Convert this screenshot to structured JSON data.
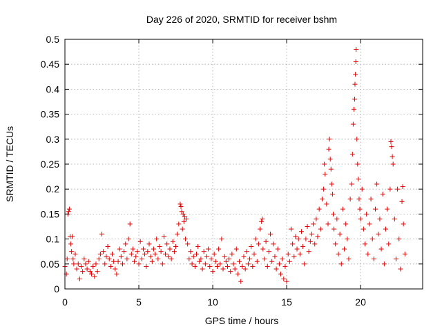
{
  "chart_data": {
    "type": "scatter",
    "title": "Day 226 of 2020, SRMTID for receiver bshm",
    "xlabel": "GPS time / hours",
    "ylabel": "SRMTID / TECUs",
    "xlim": [
      0,
      24.2
    ],
    "ylim": [
      0,
      0.5
    ],
    "xticks": [
      0,
      5,
      10,
      15,
      20
    ],
    "xtick_labels": [
      "0",
      "5",
      "10",
      "15",
      "20"
    ],
    "yticks": [
      0,
      0.05,
      0.1,
      0.15,
      0.2,
      0.25,
      0.3,
      0.35,
      0.4,
      0.45,
      0.5
    ],
    "ytick_labels": [
      "0",
      "0.05",
      "0.1",
      "0.15",
      "0.2",
      "0.25",
      "0.3",
      "0.35",
      "0.4",
      "0.45",
      "0.5"
    ],
    "grid": true,
    "marker": "+",
    "color": "#e00000",
    "series": [
      {
        "name": "SRMTID",
        "points": [
          [
            0.0,
            0.045
          ],
          [
            0.1,
            0.03
          ],
          [
            0.15,
            0.06
          ],
          [
            0.2,
            0.15
          ],
          [
            0.25,
            0.155
          ],
          [
            0.3,
            0.16
          ],
          [
            0.35,
            0.105
          ],
          [
            0.4,
            0.09
          ],
          [
            0.45,
            0.075
          ],
          [
            0.5,
            0.105
          ],
          [
            0.55,
            0.06
          ],
          [
            0.6,
            0.05
          ],
          [
            0.7,
            0.07
          ],
          [
            0.8,
            0.04
          ],
          [
            0.9,
            0.05
          ],
          [
            1.0,
            0.02
          ],
          [
            1.1,
            0.045
          ],
          [
            1.2,
            0.035
          ],
          [
            1.3,
            0.06
          ],
          [
            1.4,
            0.05
          ],
          [
            1.5,
            0.04
          ],
          [
            1.6,
            0.055
          ],
          [
            1.7,
            0.035
          ],
          [
            1.8,
            0.03
          ],
          [
            1.9,
            0.045
          ],
          [
            2.0,
            0.025
          ],
          [
            2.1,
            0.05
          ],
          [
            2.2,
            0.035
          ],
          [
            2.3,
            0.06
          ],
          [
            2.4,
            0.07
          ],
          [
            2.5,
            0.11
          ],
          [
            2.6,
            0.075
          ],
          [
            2.7,
            0.05
          ],
          [
            2.8,
            0.065
          ],
          [
            2.9,
            0.085
          ],
          [
            3.0,
            0.06
          ],
          [
            3.1,
            0.045
          ],
          [
            3.2,
            0.07
          ],
          [
            3.3,
            0.055
          ],
          [
            3.4,
            0.04
          ],
          [
            3.5,
            0.03
          ],
          [
            3.6,
            0.055
          ],
          [
            3.7,
            0.08
          ],
          [
            3.8,
            0.065
          ],
          [
            3.9,
            0.05
          ],
          [
            4.0,
            0.075
          ],
          [
            4.1,
            0.09
          ],
          [
            4.2,
            0.06
          ],
          [
            4.3,
            0.1
          ],
          [
            4.4,
            0.13
          ],
          [
            4.5,
            0.07
          ],
          [
            4.6,
            0.08
          ],
          [
            4.7,
            0.055
          ],
          [
            4.8,
            0.065
          ],
          [
            4.9,
            0.075
          ],
          [
            5.0,
            0.05
          ],
          [
            5.1,
            0.095
          ],
          [
            5.2,
            0.06
          ],
          [
            5.3,
            0.08
          ],
          [
            5.4,
            0.07
          ],
          [
            5.5,
            0.045
          ],
          [
            5.6,
            0.075
          ],
          [
            5.7,
            0.09
          ],
          [
            5.8,
            0.065
          ],
          [
            5.9,
            0.055
          ],
          [
            6.0,
            0.08
          ],
          [
            6.1,
            0.07
          ],
          [
            6.2,
            0.1
          ],
          [
            6.3,
            0.06
          ],
          [
            6.4,
            0.085
          ],
          [
            6.5,
            0.075
          ],
          [
            6.6,
            0.05
          ],
          [
            6.7,
            0.105
          ],
          [
            6.8,
            0.07
          ],
          [
            6.9,
            0.09
          ],
          [
            7.0,
            0.065
          ],
          [
            7.1,
            0.08
          ],
          [
            7.2,
            0.06
          ],
          [
            7.3,
            0.095
          ],
          [
            7.4,
            0.075
          ],
          [
            7.5,
            0.085
          ],
          [
            7.6,
            0.11
          ],
          [
            7.7,
            0.13
          ],
          [
            7.8,
            0.17
          ],
          [
            7.85,
            0.165
          ],
          [
            7.9,
            0.155
          ],
          [
            7.95,
            0.12
          ],
          [
            8.0,
            0.15
          ],
          [
            8.05,
            0.135
          ],
          [
            8.1,
            0.145
          ],
          [
            8.15,
            0.1
          ],
          [
            8.2,
            0.14
          ],
          [
            8.3,
            0.09
          ],
          [
            8.4,
            0.06
          ],
          [
            8.5,
            0.075
          ],
          [
            8.6,
            0.05
          ],
          [
            8.7,
            0.065
          ],
          [
            8.8,
            0.045
          ],
          [
            8.9,
            0.07
          ],
          [
            9.0,
            0.085
          ],
          [
            9.1,
            0.055
          ],
          [
            9.2,
            0.06
          ],
          [
            9.3,
            0.04
          ],
          [
            9.4,
            0.075
          ],
          [
            9.5,
            0.05
          ],
          [
            9.6,
            0.065
          ],
          [
            9.7,
            0.08
          ],
          [
            9.8,
            0.045
          ],
          [
            9.9,
            0.06
          ],
          [
            10.0,
            0.035
          ],
          [
            10.1,
            0.07
          ],
          [
            10.2,
            0.055
          ],
          [
            10.3,
            0.045
          ],
          [
            10.4,
            0.08
          ],
          [
            10.5,
            0.05
          ],
          [
            10.6,
            0.1
          ],
          [
            10.7,
            0.04
          ],
          [
            10.8,
            0.065
          ],
          [
            10.9,
            0.055
          ],
          [
            11.0,
            0.045
          ],
          [
            11.1,
            0.06
          ],
          [
            11.2,
            0.035
          ],
          [
            11.3,
            0.07
          ],
          [
            11.4,
            0.05
          ],
          [
            11.5,
            0.04
          ],
          [
            11.6,
            0.08
          ],
          [
            11.7,
            0.03
          ],
          [
            11.8,
            0.055
          ],
          [
            11.9,
            0.015
          ],
          [
            12.0,
            0.045
          ],
          [
            12.1,
            0.065
          ],
          [
            12.2,
            0.04
          ],
          [
            12.3,
            0.075
          ],
          [
            12.4,
            0.05
          ],
          [
            12.5,
            0.06
          ],
          [
            12.6,
            0.085
          ],
          [
            12.7,
            0.045
          ],
          [
            12.8,
            0.07
          ],
          [
            12.9,
            0.1
          ],
          [
            13.0,
            0.055
          ],
          [
            13.1,
            0.09
          ],
          [
            13.2,
            0.12
          ],
          [
            13.3,
            0.135
          ],
          [
            13.35,
            0.14
          ],
          [
            13.4,
            0.08
          ],
          [
            13.5,
            0.06
          ],
          [
            13.6,
            0.095
          ],
          [
            13.7,
            0.045
          ],
          [
            13.8,
            0.075
          ],
          [
            13.9,
            0.11
          ],
          [
            14.0,
            0.055
          ],
          [
            14.1,
            0.09
          ],
          [
            14.2,
            0.065
          ],
          [
            14.3,
            0.04
          ],
          [
            14.4,
            0.08
          ],
          [
            14.5,
            0.05
          ],
          [
            14.6,
            0.03
          ],
          [
            14.7,
            0.06
          ],
          [
            14.8,
            0.02
          ],
          [
            14.9,
            0.045
          ],
          [
            15.0,
            0.015
          ],
          [
            15.1,
            0.07
          ],
          [
            15.2,
            0.055
          ],
          [
            15.3,
            0.12
          ],
          [
            15.4,
            0.09
          ],
          [
            15.5,
            0.065
          ],
          [
            15.6,
            0.105
          ],
          [
            15.7,
            0.08
          ],
          [
            15.8,
            0.1
          ],
          [
            15.9,
            0.07
          ],
          [
            16.0,
            0.115
          ],
          [
            16.1,
            0.085
          ],
          [
            16.2,
            0.05
          ],
          [
            16.3,
            0.1
          ],
          [
            16.4,
            0.125
          ],
          [
            16.5,
            0.075
          ],
          [
            16.6,
            0.095
          ],
          [
            16.7,
            0.11
          ],
          [
            16.8,
            0.13
          ],
          [
            16.9,
            0.09
          ],
          [
            17.0,
            0.14
          ],
          [
            17.1,
            0.105
          ],
          [
            17.2,
            0.16
          ],
          [
            17.3,
            0.12
          ],
          [
            17.4,
            0.18
          ],
          [
            17.5,
            0.2
          ],
          [
            17.55,
            0.25
          ],
          [
            17.6,
            0.23
          ],
          [
            17.7,
            0.17
          ],
          [
            17.8,
            0.13
          ],
          [
            17.85,
            0.28
          ],
          [
            17.9,
            0.3
          ],
          [
            17.95,
            0.26
          ],
          [
            18.0,
            0.24
          ],
          [
            18.05,
            0.21
          ],
          [
            18.1,
            0.19
          ],
          [
            18.15,
            0.15
          ],
          [
            18.2,
            0.12
          ],
          [
            18.3,
            0.09
          ],
          [
            18.4,
            0.14
          ],
          [
            18.5,
            0.07
          ],
          [
            18.6,
            0.11
          ],
          [
            18.7,
            0.05
          ],
          [
            18.8,
            0.16
          ],
          [
            18.9,
            0.08
          ],
          [
            19.0,
            0.13
          ],
          [
            19.1,
            0.1
          ],
          [
            19.2,
            0.06
          ],
          [
            19.3,
            0.18
          ],
          [
            19.4,
            0.21
          ],
          [
            19.45,
            0.27
          ],
          [
            19.5,
            0.33
          ],
          [
            19.55,
            0.36
          ],
          [
            19.6,
            0.38
          ],
          [
            19.62,
            0.41
          ],
          [
            19.65,
            0.43
          ],
          [
            19.68,
            0.455
          ],
          [
            19.7,
            0.48
          ],
          [
            19.75,
            0.3
          ],
          [
            19.8,
            0.25
          ],
          [
            19.85,
            0.22
          ],
          [
            19.9,
            0.18
          ],
          [
            19.95,
            0.16
          ],
          [
            20.0,
            0.14
          ],
          [
            20.1,
            0.2
          ],
          [
            20.2,
            0.12
          ],
          [
            20.3,
            0.09
          ],
          [
            20.4,
            0.15
          ],
          [
            20.5,
            0.07
          ],
          [
            20.6,
            0.13
          ],
          [
            20.7,
            0.18
          ],
          [
            20.8,
            0.1
          ],
          [
            20.9,
            0.06
          ],
          [
            21.0,
            0.16
          ],
          [
            21.1,
            0.21
          ],
          [
            21.2,
            0.11
          ],
          [
            21.3,
            0.14
          ],
          [
            21.4,
            0.08
          ],
          [
            21.5,
            0.19
          ],
          [
            21.6,
            0.05
          ],
          [
            21.7,
            0.12
          ],
          [
            21.8,
            0.16
          ],
          [
            21.9,
            0.09
          ],
          [
            22.0,
            0.2
          ],
          [
            22.05,
            0.295
          ],
          [
            22.1,
            0.285
          ],
          [
            22.15,
            0.265
          ],
          [
            22.2,
            0.25
          ],
          [
            22.3,
            0.14
          ],
          [
            22.4,
            0.06
          ],
          [
            22.5,
            0.2
          ],
          [
            22.6,
            0.1
          ],
          [
            22.7,
            0.04
          ],
          [
            22.8,
            0.175
          ],
          [
            22.85,
            0.205
          ],
          [
            22.9,
            0.13
          ],
          [
            23.0,
            0.07
          ]
        ]
      }
    ]
  }
}
